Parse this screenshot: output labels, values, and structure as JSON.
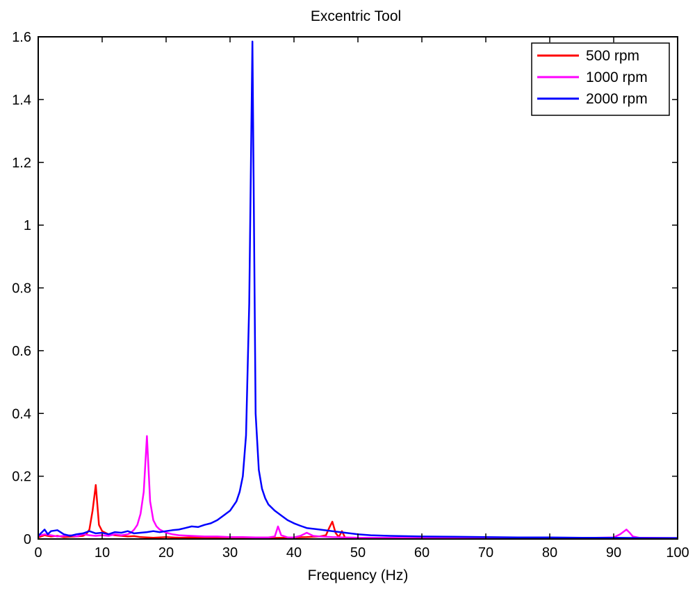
{
  "chart_data": {
    "type": "line",
    "title": "Excentric Tool",
    "xlabel": "Frequency (Hz)",
    "ylabel": "",
    "xlim": [
      0,
      100
    ],
    "ylim": [
      0,
      1.6
    ],
    "xticks": [
      0,
      10,
      20,
      30,
      40,
      50,
      60,
      70,
      80,
      90,
      100
    ],
    "yticks": [
      0,
      0.2,
      0.4,
      0.6,
      0.8,
      1,
      1.2,
      1.4,
      1.6
    ],
    "xtick_labels": [
      "0",
      "10",
      "20",
      "30",
      "40",
      "50",
      "60",
      "70",
      "80",
      "90",
      "100"
    ],
    "ytick_labels": [
      "0",
      "0.2",
      "0.4",
      "0.6",
      "0.8",
      "1",
      "1.2",
      "1.4",
      "1.6"
    ],
    "grid": false,
    "legend_position": "top-right",
    "series": [
      {
        "name": "500 rpm",
        "color": "#ff0000",
        "x": [
          0,
          1,
          2,
          3,
          4,
          5,
          6,
          7,
          7.5,
          8,
          8.5,
          9,
          9.5,
          10,
          11,
          12,
          13,
          14,
          15,
          16,
          17,
          18,
          19,
          20,
          22,
          24,
          26,
          28,
          30,
          32,
          34,
          36,
          38,
          40,
          42,
          44,
          45,
          45.5,
          46,
          46.5,
          47,
          47.5,
          48,
          50,
          55,
          60,
          65,
          70,
          75,
          80,
          85,
          90,
          95,
          100
        ],
        "y": [
          0.005,
          0.012,
          0.008,
          0.01,
          0.006,
          0.007,
          0.008,
          0.01,
          0.015,
          0.03,
          0.09,
          0.172,
          0.045,
          0.025,
          0.015,
          0.012,
          0.01,
          0.008,
          0.009,
          0.006,
          0.005,
          0.004,
          0.005,
          0.006,
          0.004,
          0.005,
          0.004,
          0.005,
          0.004,
          0.004,
          0.005,
          0.003,
          0.004,
          0.005,
          0.006,
          0.008,
          0.012,
          0.035,
          0.055,
          0.02,
          0.006,
          0.025,
          0.004,
          0.003,
          0.003,
          0.002,
          0.003,
          0.002,
          0.002,
          0.002,
          0.002,
          0.002,
          0.002,
          0.002
        ]
      },
      {
        "name": "1000 rpm",
        "color": "#ff00ff",
        "x": [
          0,
          1,
          2,
          3,
          4,
          5,
          6,
          7,
          8,
          9,
          10,
          11,
          12,
          13,
          14,
          14.5,
          15,
          15.5,
          16,
          16.5,
          17,
          17.5,
          18,
          18.5,
          19,
          20,
          21,
          22,
          24,
          26,
          28,
          30,
          32,
          34,
          36,
          37,
          37.5,
          38,
          39,
          40,
          41,
          42,
          43,
          44,
          46,
          48,
          50,
          55,
          60,
          65,
          70,
          75,
          80,
          85,
          90,
          91,
          92,
          92.5,
          93,
          94,
          95,
          100
        ],
        "y": [
          0.01,
          0.015,
          0.012,
          0.008,
          0.01,
          0.012,
          0.008,
          0.015,
          0.012,
          0.01,
          0.012,
          0.01,
          0.015,
          0.012,
          0.015,
          0.02,
          0.03,
          0.045,
          0.08,
          0.15,
          0.328,
          0.12,
          0.06,
          0.04,
          0.03,
          0.02,
          0.015,
          0.012,
          0.01,
          0.008,
          0.008,
          0.006,
          0.006,
          0.005,
          0.005,
          0.008,
          0.04,
          0.012,
          0.005,
          0.005,
          0.01,
          0.02,
          0.01,
          0.008,
          0.006,
          0.005,
          0.004,
          0.004,
          0.003,
          0.003,
          0.003,
          0.003,
          0.003,
          0.003,
          0.005,
          0.015,
          0.03,
          0.02,
          0.008,
          0.004,
          0.004,
          0.003
        ]
      },
      {
        "name": "2000 rpm",
        "color": "#0000ff",
        "x": [
          0,
          0.5,
          1,
          1.5,
          2,
          3,
          4,
          5,
          6,
          7,
          8,
          9,
          10,
          11,
          12,
          13,
          14,
          15,
          16,
          17,
          18,
          19,
          20,
          21,
          22,
          23,
          24,
          25,
          26,
          27,
          28,
          29,
          30,
          31,
          31.5,
          32,
          32.5,
          33,
          33.5,
          34,
          34.5,
          35,
          35.5,
          36,
          37,
          38,
          39,
          40,
          41,
          42,
          44,
          46,
          48,
          50,
          52,
          55,
          60,
          65,
          70,
          75,
          80,
          85,
          90,
          95,
          100
        ],
        "y": [
          0.01,
          0.02,
          0.03,
          0.015,
          0.025,
          0.028,
          0.015,
          0.01,
          0.015,
          0.018,
          0.025,
          0.018,
          0.02,
          0.015,
          0.022,
          0.02,
          0.025,
          0.018,
          0.02,
          0.022,
          0.025,
          0.022,
          0.025,
          0.028,
          0.03,
          0.035,
          0.04,
          0.038,
          0.045,
          0.05,
          0.06,
          0.075,
          0.09,
          0.12,
          0.15,
          0.2,
          0.33,
          0.75,
          1.585,
          0.4,
          0.22,
          0.16,
          0.13,
          0.11,
          0.09,
          0.075,
          0.06,
          0.05,
          0.042,
          0.035,
          0.03,
          0.025,
          0.02,
          0.015,
          0.012,
          0.01,
          0.008,
          0.007,
          0.006,
          0.005,
          0.005,
          0.004,
          0.004,
          0.003,
          0.003
        ]
      }
    ]
  }
}
